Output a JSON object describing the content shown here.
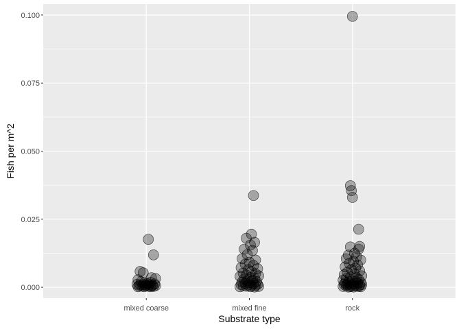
{
  "chart_data": {
    "type": "scatter",
    "title": "",
    "xlabel": "Substrate type",
    "ylabel": "Fish per m^2",
    "categories": [
      "mixed coarse",
      "mixed fine",
      "rock"
    ],
    "ylim": [
      -0.004,
      0.104
    ],
    "yticks": [
      0.0,
      0.025,
      0.05,
      0.075,
      0.1
    ],
    "ytick_labels": [
      "0.000",
      "0.025",
      "0.050",
      "0.075",
      "0.100"
    ],
    "grid": true,
    "legend": "none",
    "point_color": "#000000",
    "point_fill_opacity": 0.3,
    "panel_background": "#ebebeb",
    "gridline_color": "#ffffff",
    "points": [
      {
        "category": "mixed coarse",
        "jitter": 0.02,
        "y": 0.0176
      },
      {
        "category": "mixed coarse",
        "jitter": 0.07,
        "y": 0.0119
      },
      {
        "category": "mixed coarse",
        "jitter": -0.06,
        "y": 0.0058
      },
      {
        "category": "mixed coarse",
        "jitter": -0.03,
        "y": 0.0053
      },
      {
        "category": "mixed coarse",
        "jitter": 0.09,
        "y": 0.0032
      },
      {
        "category": "mixed coarse",
        "jitter": 0.05,
        "y": 0.0035
      },
      {
        "category": "mixed coarse",
        "jitter": -0.08,
        "y": 0.0028
      },
      {
        "category": "mixed coarse",
        "jitter": -0.05,
        "y": 0.002
      },
      {
        "category": "mixed coarse",
        "jitter": -0.02,
        "y": 0.0016
      },
      {
        "category": "mixed coarse",
        "jitter": 0.01,
        "y": 0.0014
      },
      {
        "category": "mixed coarse",
        "jitter": 0.04,
        "y": 0.0018
      },
      {
        "category": "mixed coarse",
        "jitter": 0.08,
        "y": 0.0012
      },
      {
        "category": "mixed coarse",
        "jitter": -0.09,
        "y": 0.0011
      },
      {
        "category": "mixed coarse",
        "jitter": -0.06,
        "y": 0.0009
      },
      {
        "category": "mixed coarse",
        "jitter": -0.03,
        "y": 0.001
      },
      {
        "category": "mixed coarse",
        "jitter": 0.0,
        "y": 0.0008
      },
      {
        "category": "mixed coarse",
        "jitter": 0.03,
        "y": 0.001
      },
      {
        "category": "mixed coarse",
        "jitter": 0.06,
        "y": 0.0007
      },
      {
        "category": "mixed coarse",
        "jitter": -0.07,
        "y": 0.0005
      },
      {
        "category": "mixed coarse",
        "jitter": -0.04,
        "y": 0.0004
      },
      {
        "category": "mixed coarse",
        "jitter": -0.01,
        "y": 0.0006
      },
      {
        "category": "mixed coarse",
        "jitter": 0.02,
        "y": 0.0004
      },
      {
        "category": "mixed coarse",
        "jitter": 0.05,
        "y": 0.0005
      },
      {
        "category": "mixed coarse",
        "jitter": 0.09,
        "y": 0.0006
      },
      {
        "category": "mixed coarse",
        "jitter": -0.08,
        "y": 0.0002
      },
      {
        "category": "mixed coarse",
        "jitter": -0.02,
        "y": 0.0002
      },
      {
        "category": "mixed coarse",
        "jitter": 0.04,
        "y": 0.0002
      },
      {
        "category": "mixed coarse",
        "jitter": 0.07,
        "y": 0.0003
      },
      {
        "category": "mixed fine",
        "jitter": 0.04,
        "y": 0.0337
      },
      {
        "category": "mixed fine",
        "jitter": 0.02,
        "y": 0.0195
      },
      {
        "category": "mixed fine",
        "jitter": -0.03,
        "y": 0.018
      },
      {
        "category": "mixed fine",
        "jitter": 0.05,
        "y": 0.0165
      },
      {
        "category": "mixed fine",
        "jitter": 0.01,
        "y": 0.0155
      },
      {
        "category": "mixed fine",
        "jitter": -0.05,
        "y": 0.014
      },
      {
        "category": "mixed fine",
        "jitter": 0.03,
        "y": 0.0135
      },
      {
        "category": "mixed fine",
        "jitter": -0.02,
        "y": 0.012
      },
      {
        "category": "mixed fine",
        "jitter": -0.07,
        "y": 0.0105
      },
      {
        "category": "mixed fine",
        "jitter": 0.06,
        "y": 0.01
      },
      {
        "category": "mixed fine",
        "jitter": 0.0,
        "y": 0.0092
      },
      {
        "category": "mixed fine",
        "jitter": -0.04,
        "y": 0.0085
      },
      {
        "category": "mixed fine",
        "jitter": 0.04,
        "y": 0.008
      },
      {
        "category": "mixed fine",
        "jitter": -0.08,
        "y": 0.0072
      },
      {
        "category": "mixed fine",
        "jitter": 0.08,
        "y": 0.0068
      },
      {
        "category": "mixed fine",
        "jitter": -0.01,
        "y": 0.0065
      },
      {
        "category": "mixed fine",
        "jitter": 0.02,
        "y": 0.0058
      },
      {
        "category": "mixed fine",
        "jitter": -0.06,
        "y": 0.0052
      },
      {
        "category": "mixed fine",
        "jitter": 0.06,
        "y": 0.005
      },
      {
        "category": "mixed fine",
        "jitter": -0.03,
        "y": 0.0045
      },
      {
        "category": "mixed fine",
        "jitter": 0.09,
        "y": 0.0042
      },
      {
        "category": "mixed fine",
        "jitter": -0.09,
        "y": 0.004
      },
      {
        "category": "mixed fine",
        "jitter": 0.01,
        "y": 0.0036
      },
      {
        "category": "mixed fine",
        "jitter": 0.05,
        "y": 0.0033
      },
      {
        "category": "mixed fine",
        "jitter": -0.05,
        "y": 0.003
      },
      {
        "category": "mixed fine",
        "jitter": 0.03,
        "y": 0.0026
      },
      {
        "category": "mixed fine",
        "jitter": -0.02,
        "y": 0.0024
      },
      {
        "category": "mixed fine",
        "jitter": 0.07,
        "y": 0.0021
      },
      {
        "category": "mixed fine",
        "jitter": -0.07,
        "y": 0.0019
      },
      {
        "category": "mixed fine",
        "jitter": 0.0,
        "y": 0.0017
      },
      {
        "category": "mixed fine",
        "jitter": -0.04,
        "y": 0.0014
      },
      {
        "category": "mixed fine",
        "jitter": 0.04,
        "y": 0.0013
      },
      {
        "category": "mixed fine",
        "jitter": 0.08,
        "y": 0.0011
      },
      {
        "category": "mixed fine",
        "jitter": -0.08,
        "y": 0.001
      },
      {
        "category": "mixed fine",
        "jitter": -0.01,
        "y": 0.0008
      },
      {
        "category": "mixed fine",
        "jitter": 0.02,
        "y": 0.0007
      },
      {
        "category": "mixed fine",
        "jitter": 0.06,
        "y": 0.0006
      },
      {
        "category": "mixed fine",
        "jitter": -0.06,
        "y": 0.0005
      },
      {
        "category": "mixed fine",
        "jitter": -0.03,
        "y": 0.0004
      },
      {
        "category": "mixed fine",
        "jitter": 0.09,
        "y": 0.0003
      },
      {
        "category": "mixed fine",
        "jitter": -0.09,
        "y": 0.0002
      },
      {
        "category": "mixed fine",
        "jitter": 0.01,
        "y": 0.0002
      },
      {
        "category": "mixed fine",
        "jitter": 0.05,
        "y": 0.0001
      },
      {
        "category": "rock",
        "jitter": 0.0,
        "y": 0.0995
      },
      {
        "category": "rock",
        "jitter": -0.02,
        "y": 0.0373
      },
      {
        "category": "rock",
        "jitter": -0.01,
        "y": 0.0355
      },
      {
        "category": "rock",
        "jitter": 0.0,
        "y": 0.033
      },
      {
        "category": "rock",
        "jitter": 0.06,
        "y": 0.0213
      },
      {
        "category": "rock",
        "jitter": 0.07,
        "y": 0.015
      },
      {
        "category": "rock",
        "jitter": -0.02,
        "y": 0.0148
      },
      {
        "category": "rock",
        "jitter": 0.06,
        "y": 0.014
      },
      {
        "category": "rock",
        "jitter": 0.02,
        "y": 0.0125
      },
      {
        "category": "rock",
        "jitter": -0.04,
        "y": 0.0118
      },
      {
        "category": "rock",
        "jitter": 0.04,
        "y": 0.0112
      },
      {
        "category": "rock",
        "jitter": -0.06,
        "y": 0.0105
      },
      {
        "category": "rock",
        "jitter": 0.08,
        "y": 0.01
      },
      {
        "category": "rock",
        "jitter": 0.01,
        "y": 0.0095
      },
      {
        "category": "rock",
        "jitter": -0.03,
        "y": 0.0088
      },
      {
        "category": "rock",
        "jitter": 0.05,
        "y": 0.0082
      },
      {
        "category": "rock",
        "jitter": -0.07,
        "y": 0.0075
      },
      {
        "category": "rock",
        "jitter": 0.03,
        "y": 0.007
      },
      {
        "category": "rock",
        "jitter": -0.01,
        "y": 0.0065
      },
      {
        "category": "rock",
        "jitter": 0.07,
        "y": 0.006
      },
      {
        "category": "rock",
        "jitter": -0.05,
        "y": 0.0055
      },
      {
        "category": "rock",
        "jitter": 0.02,
        "y": 0.005
      },
      {
        "category": "rock",
        "jitter": -0.08,
        "y": 0.0046
      },
      {
        "category": "rock",
        "jitter": 0.09,
        "y": 0.0042
      },
      {
        "category": "rock",
        "jitter": -0.02,
        "y": 0.0038
      },
      {
        "category": "rock",
        "jitter": 0.04,
        "y": 0.0035
      },
      {
        "category": "rock",
        "jitter": -0.06,
        "y": 0.0032
      },
      {
        "category": "rock",
        "jitter": 0.06,
        "y": 0.0029
      },
      {
        "category": "rock",
        "jitter": -0.09,
        "y": 0.0026
      },
      {
        "category": "rock",
        "jitter": 0.0,
        "y": 0.0024
      },
      {
        "category": "rock",
        "jitter": 0.03,
        "y": 0.0022
      },
      {
        "category": "rock",
        "jitter": -0.04,
        "y": 0.002
      },
      {
        "category": "rock",
        "jitter": 0.08,
        "y": 0.0018
      },
      {
        "category": "rock",
        "jitter": -0.07,
        "y": 0.0016
      },
      {
        "category": "rock",
        "jitter": 0.05,
        "y": 0.0015
      },
      {
        "category": "rock",
        "jitter": -0.03,
        "y": 0.0013
      },
      {
        "category": "rock",
        "jitter": 0.01,
        "y": 0.0012
      },
      {
        "category": "rock",
        "jitter": -0.08,
        "y": 0.0011
      },
      {
        "category": "rock",
        "jitter": 0.09,
        "y": 0.001
      },
      {
        "category": "rock",
        "jitter": -0.05,
        "y": 0.0009
      },
      {
        "category": "rock",
        "jitter": 0.07,
        "y": 0.0008
      },
      {
        "category": "rock",
        "jitter": -0.01,
        "y": 0.0007
      },
      {
        "category": "rock",
        "jitter": 0.02,
        "y": 0.0006
      },
      {
        "category": "rock",
        "jitter": -0.06,
        "y": 0.0005
      },
      {
        "category": "rock",
        "jitter": 0.04,
        "y": 0.0004
      },
      {
        "category": "rock",
        "jitter": -0.09,
        "y": 0.0003
      },
      {
        "category": "rock",
        "jitter": 0.06,
        "y": 0.0003
      },
      {
        "category": "rock",
        "jitter": -0.02,
        "y": 0.0002
      },
      {
        "category": "rock",
        "jitter": 0.08,
        "y": 0.0002
      },
      {
        "category": "rock",
        "jitter": -0.04,
        "y": 0.0001
      },
      {
        "category": "rock",
        "jitter": 0.01,
        "y": 0.0001
      }
    ]
  }
}
